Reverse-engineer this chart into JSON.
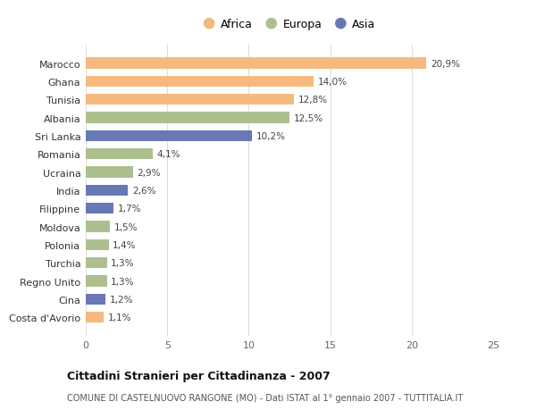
{
  "countries": [
    "Costa d'Avorio",
    "Cina",
    "Regno Unito",
    "Turchia",
    "Polonia",
    "Moldova",
    "Filippine",
    "India",
    "Ucraina",
    "Romania",
    "Sri Lanka",
    "Albania",
    "Tunisia",
    "Ghana",
    "Marocco"
  ],
  "values": [
    1.1,
    1.2,
    1.3,
    1.3,
    1.4,
    1.5,
    1.7,
    2.6,
    2.9,
    4.1,
    10.2,
    12.5,
    12.8,
    14.0,
    20.9
  ],
  "labels": [
    "1,1%",
    "1,2%",
    "1,3%",
    "1,3%",
    "1,4%",
    "1,5%",
    "1,7%",
    "2,6%",
    "2,9%",
    "4,1%",
    "10,2%",
    "12,5%",
    "12,8%",
    "14,0%",
    "20,9%"
  ],
  "continents": [
    "Africa",
    "Asia",
    "Europa",
    "Europa",
    "Europa",
    "Europa",
    "Asia",
    "Asia",
    "Europa",
    "Europa",
    "Asia",
    "Europa",
    "Africa",
    "Africa",
    "Africa"
  ],
  "colors": {
    "Africa": "#F5B97F",
    "Europa": "#ADBF8F",
    "Asia": "#6878B4"
  },
  "legend_order": [
    "Africa",
    "Europa",
    "Asia"
  ],
  "xlim": [
    0,
    25
  ],
  "xticks": [
    0,
    5,
    10,
    15,
    20,
    25
  ],
  "title": "Cittadini Stranieri per Cittadinanza - 2007",
  "subtitle": "COMUNE DI CASTELNUOVO RANGONE (MO) - Dati ISTAT al 1° gennaio 2007 - TUTTITALIA.IT",
  "background_color": "#ffffff",
  "grid_color": "#dddddd",
  "bar_height": 0.6
}
